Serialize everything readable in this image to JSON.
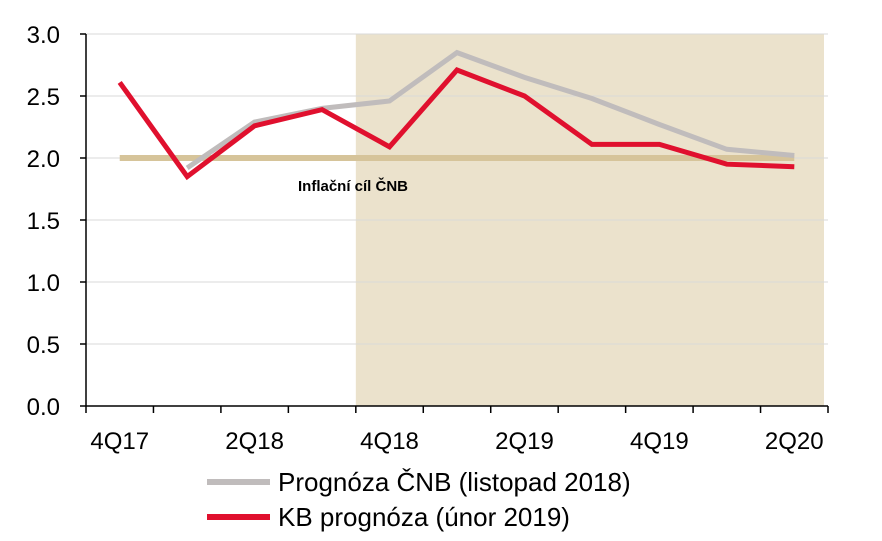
{
  "chart_data": {
    "type": "line",
    "x": [
      "4Q17",
      "1Q18",
      "2Q18",
      "3Q18",
      "4Q18",
      "1Q19",
      "2Q19",
      "3Q19",
      "4Q19",
      "1Q20",
      "2Q20"
    ],
    "x_tick_labels": [
      "4Q17",
      "2Q18",
      "4Q18",
      "2Q19",
      "4Q19",
      "2Q20"
    ],
    "y_tick_labels": [
      "0.0",
      "0.5",
      "1.0",
      "1.5",
      "2.0",
      "2.5",
      "3.0"
    ],
    "ylim": [
      0,
      3.0
    ],
    "grid": true,
    "shaded_region": {
      "from": "3Q18/4Q18",
      "to": "2Q20",
      "color": "#ebe2cc"
    },
    "series": [
      {
        "name": "Prognóza ČNB (listopad 2018)",
        "color": "#c0bcbc",
        "values": [
          null,
          1.92,
          2.29,
          2.4,
          2.46,
          2.85,
          2.65,
          2.48,
          2.27,
          2.07,
          2.02
        ]
      },
      {
        "name": "KB prognóza (únor 2019)",
        "color": "#e0102e",
        "values": [
          2.61,
          1.85,
          2.26,
          2.39,
          2.09,
          2.71,
          2.5,
          2.11,
          2.11,
          1.95,
          1.93
        ]
      }
    ],
    "target_line": {
      "value": 2.0,
      "color": "#d6c49a",
      "label": "Inflační cíl ČNB"
    },
    "legend_position": "bottom"
  }
}
